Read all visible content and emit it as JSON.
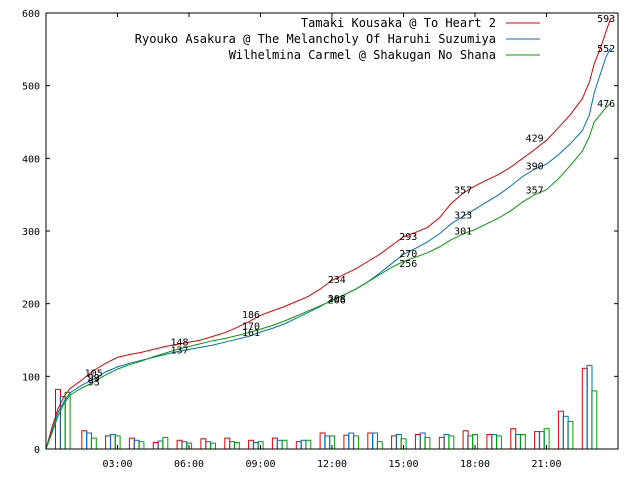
{
  "chart_data": {
    "type": "line",
    "title": "",
    "xlabel": "",
    "ylabel": "",
    "ylim": [
      0,
      600
    ],
    "xlim_hours": [
      0,
      24
    ],
    "y_ticks": [
      "0",
      "100",
      "200",
      "300",
      "400",
      "500",
      "600"
    ],
    "x_ticks": [
      "03:00",
      "06:00",
      "09:00",
      "12:00",
      "15:00",
      "18:00",
      "21:00"
    ],
    "legend_position": "top-right",
    "grid": false,
    "series": [
      {
        "name": "Tamaki Kousaka @ To Heart 2",
        "color": "#e00000",
        "points": [
          [
            0,
            0
          ],
          [
            0.25,
            30
          ],
          [
            0.5,
            55
          ],
          [
            0.75,
            72
          ],
          [
            1,
            83
          ],
          [
            1.5,
            95
          ],
          [
            2,
            108
          ],
          [
            2.5,
            118
          ],
          [
            3,
            126
          ],
          [
            3.5,
            130
          ],
          [
            4,
            133
          ],
          [
            4.5,
            137
          ],
          [
            5,
            141
          ],
          [
            5.5,
            144
          ],
          [
            6,
            147
          ],
          [
            6.5,
            150
          ],
          [
            7,
            155
          ],
          [
            7.5,
            160
          ],
          [
            8,
            167
          ],
          [
            8.5,
            175
          ],
          [
            9,
            184
          ],
          [
            9.5,
            190
          ],
          [
            10,
            196
          ],
          [
            10.5,
            203
          ],
          [
            11,
            210
          ],
          [
            11.5,
            220
          ],
          [
            12,
            232
          ],
          [
            12.5,
            240
          ],
          [
            13,
            248
          ],
          [
            13.5,
            258
          ],
          [
            14,
            268
          ],
          [
            14.5,
            280
          ],
          [
            15,
            292
          ],
          [
            15.5,
            298
          ],
          [
            16,
            305
          ],
          [
            16.5,
            318
          ],
          [
            17,
            338
          ],
          [
            17.5,
            352
          ],
          [
            18,
            362
          ],
          [
            18.5,
            370
          ],
          [
            19,
            378
          ],
          [
            19.5,
            388
          ],
          [
            20,
            400
          ],
          [
            20.5,
            412
          ],
          [
            21,
            425
          ],
          [
            21.5,
            442
          ],
          [
            22,
            460
          ],
          [
            22.5,
            482
          ],
          [
            22.8,
            505
          ],
          [
            23,
            530
          ],
          [
            23.3,
            555
          ],
          [
            23.5,
            575
          ],
          [
            23.7,
            593
          ]
        ],
        "labels": [
          {
            "x": 2,
            "y": 105,
            "text": "105"
          },
          {
            "x": 5.6,
            "y": 148,
            "text": "148"
          },
          {
            "x": 8.6,
            "y": 186,
            "text": "186"
          },
          {
            "x": 12.2,
            "y": 234,
            "text": "234"
          },
          {
            "x": 15.2,
            "y": 293,
            "text": "293"
          },
          {
            "x": 17.5,
            "y": 357,
            "text": "357"
          },
          {
            "x": 20.5,
            "y": 429,
            "text": "429"
          },
          {
            "x": 23.5,
            "y": 593,
            "text": "593"
          }
        ],
        "bars": [
          [
            0.4,
            82
          ],
          [
            1.5,
            25
          ],
          [
            2.5,
            18
          ],
          [
            3.5,
            15
          ],
          [
            4.5,
            9
          ],
          [
            5.5,
            12
          ],
          [
            6.5,
            14
          ],
          [
            7.5,
            15
          ],
          [
            8.5,
            12
          ],
          [
            9.5,
            15
          ],
          [
            10.5,
            10
          ],
          [
            11.5,
            22
          ],
          [
            12.5,
            19
          ],
          [
            13.5,
            22
          ],
          [
            14.5,
            18
          ],
          [
            15.5,
            20
          ],
          [
            16.5,
            16
          ],
          [
            17.5,
            25
          ],
          [
            18.5,
            20
          ],
          [
            19.5,
            28
          ],
          [
            20.5,
            24
          ],
          [
            21.5,
            52
          ],
          [
            22.5,
            111
          ]
        ]
      },
      {
        "name": "Ryouko Asakura @ The Melancholy Of Haruhi Suzumiya",
        "color": "#0070c0",
        "points": [
          [
            0,
            0
          ],
          [
            0.25,
            25
          ],
          [
            0.5,
            50
          ],
          [
            0.75,
            65
          ],
          [
            1,
            77
          ],
          [
            1.5,
            88
          ],
          [
            2,
            96
          ],
          [
            2.5,
            106
          ],
          [
            3,
            113
          ],
          [
            3.5,
            118
          ],
          [
            4,
            122
          ],
          [
            4.5,
            126
          ],
          [
            5,
            130
          ],
          [
            5.5,
            134
          ],
          [
            6,
            137
          ],
          [
            6.5,
            140
          ],
          [
            7,
            143
          ],
          [
            7.5,
            147
          ],
          [
            8,
            151
          ],
          [
            8.5,
            155
          ],
          [
            9,
            161
          ],
          [
            9.5,
            166
          ],
          [
            10,
            172
          ],
          [
            10.5,
            180
          ],
          [
            11,
            188
          ],
          [
            11.5,
            196
          ],
          [
            12,
            205
          ],
          [
            12.5,
            212
          ],
          [
            13,
            220
          ],
          [
            13.5,
            230
          ],
          [
            14,
            242
          ],
          [
            14.5,
            255
          ],
          [
            15,
            268
          ],
          [
            15.5,
            276
          ],
          [
            16,
            285
          ],
          [
            16.5,
            296
          ],
          [
            17,
            310
          ],
          [
            17.5,
            320
          ],
          [
            18,
            330
          ],
          [
            18.5,
            340
          ],
          [
            19,
            350
          ],
          [
            19.5,
            362
          ],
          [
            20,
            375
          ],
          [
            20.5,
            385
          ],
          [
            21,
            392
          ],
          [
            21.5,
            405
          ],
          [
            22,
            420
          ],
          [
            22.5,
            438
          ],
          [
            22.8,
            460
          ],
          [
            23,
            490
          ],
          [
            23.3,
            520
          ],
          [
            23.5,
            540
          ],
          [
            23.7,
            552
          ]
        ],
        "labels": [
          {
            "x": 2,
            "y": 99,
            "text": "99"
          },
          {
            "x": 5.6,
            "y": 137,
            "text": "137"
          },
          {
            "x": 8.6,
            "y": 170,
            "text": "170"
          },
          {
            "x": 12.2,
            "y": 208,
            "text": "208"
          },
          {
            "x": 15.2,
            "y": 270,
            "text": "270"
          },
          {
            "x": 17.5,
            "y": 323,
            "text": "323"
          },
          {
            "x": 20.5,
            "y": 390,
            "text": "390"
          },
          {
            "x": 23.5,
            "y": 552,
            "text": "552"
          }
        ],
        "bars": [
          [
            0.6,
            72
          ],
          [
            1.7,
            22
          ],
          [
            2.7,
            20
          ],
          [
            3.7,
            12
          ],
          [
            4.7,
            11
          ],
          [
            5.7,
            10
          ],
          [
            6.7,
            10
          ],
          [
            7.7,
            10
          ],
          [
            8.7,
            9
          ],
          [
            9.7,
            12
          ],
          [
            10.7,
            12
          ],
          [
            11.7,
            18
          ],
          [
            12.7,
            22
          ],
          [
            13.7,
            22
          ],
          [
            14.7,
            20
          ],
          [
            15.7,
            22
          ],
          [
            16.7,
            20
          ],
          [
            17.7,
            18
          ],
          [
            18.7,
            20
          ],
          [
            19.7,
            20
          ],
          [
            20.7,
            24
          ],
          [
            21.7,
            45
          ],
          [
            22.7,
            115
          ]
        ]
      },
      {
        "name": "Wilhelmina Carmel @ Shakugan No Shana",
        "color": "#00a000",
        "points": [
          [
            0,
            0
          ],
          [
            0.25,
            22
          ],
          [
            0.5,
            45
          ],
          [
            0.75,
            62
          ],
          [
            1,
            74
          ],
          [
            1.5,
            84
          ],
          [
            2,
            92
          ],
          [
            2.5,
            102
          ],
          [
            3,
            110
          ],
          [
            3.5,
            116
          ],
          [
            4,
            121
          ],
          [
            4.5,
            127
          ],
          [
            5,
            132
          ],
          [
            5.5,
            137
          ],
          [
            6,
            141
          ],
          [
            6.5,
            145
          ],
          [
            7,
            149
          ],
          [
            7.5,
            152
          ],
          [
            8,
            156
          ],
          [
            8.5,
            160
          ],
          [
            9,
            165
          ],
          [
            9.5,
            170
          ],
          [
            10,
            176
          ],
          [
            10.5,
            183
          ],
          [
            11,
            190
          ],
          [
            11.5,
            197
          ],
          [
            12,
            204
          ],
          [
            12.5,
            212
          ],
          [
            13,
            220
          ],
          [
            13.5,
            230
          ],
          [
            14,
            240
          ],
          [
            14.5,
            250
          ],
          [
            15,
            258
          ],
          [
            15.5,
            264
          ],
          [
            16,
            270
          ],
          [
            16.5,
            278
          ],
          [
            17,
            288
          ],
          [
            17.5,
            296
          ],
          [
            18,
            302
          ],
          [
            18.5,
            310
          ],
          [
            19,
            318
          ],
          [
            19.5,
            328
          ],
          [
            20,
            340
          ],
          [
            20.5,
            350
          ],
          [
            21,
            357
          ],
          [
            21.5,
            372
          ],
          [
            22,
            390
          ],
          [
            22.5,
            410
          ],
          [
            22.8,
            430
          ],
          [
            23,
            450
          ],
          [
            23.3,
            462
          ],
          [
            23.5,
            470
          ],
          [
            23.7,
            476
          ]
        ],
        "labels": [
          {
            "x": 2,
            "y": 93,
            "text": "93"
          },
          {
            "x": 8.6,
            "y": 161,
            "text": "161"
          },
          {
            "x": 12.2,
            "y": 206,
            "text": "206"
          },
          {
            "x": 15.2,
            "y": 256,
            "text": "256"
          },
          {
            "x": 17.5,
            "y": 301,
            "text": "301"
          },
          {
            "x": 20.5,
            "y": 357,
            "text": "357"
          },
          {
            "x": 23.5,
            "y": 476,
            "text": "476"
          }
        ],
        "bars": [
          [
            0.8,
            78
          ],
          [
            1.9,
            15
          ],
          [
            2.9,
            18
          ],
          [
            3.9,
            10
          ],
          [
            4.9,
            16
          ],
          [
            5.9,
            8
          ],
          [
            6.9,
            8
          ],
          [
            7.9,
            9
          ],
          [
            8.9,
            10
          ],
          [
            9.9,
            12
          ],
          [
            10.9,
            12
          ],
          [
            11.9,
            18
          ],
          [
            12.9,
            18
          ],
          [
            13.9,
            10
          ],
          [
            14.9,
            14
          ],
          [
            15.9,
            16
          ],
          [
            16.9,
            18
          ],
          [
            17.9,
            20
          ],
          [
            18.9,
            18
          ],
          [
            19.9,
            20
          ],
          [
            20.9,
            28
          ],
          [
            21.9,
            38
          ],
          [
            22.9,
            80
          ]
        ]
      }
    ]
  }
}
